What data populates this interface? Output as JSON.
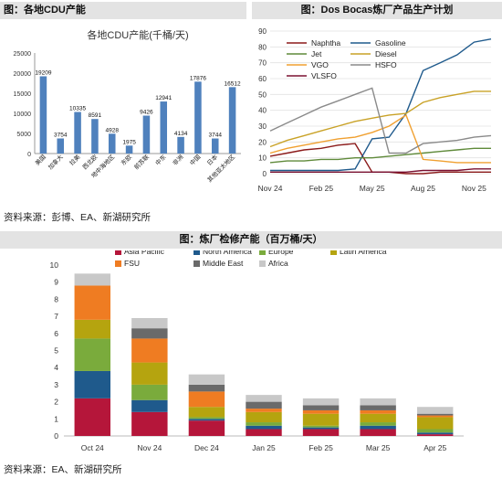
{
  "titles": {
    "cdu": "图：各地CDU产能",
    "dos_bocas": "图：Dos Bocas炼厂产品生产计划",
    "maintenance": "图：炼厂检修产能（百万桶/天）"
  },
  "sources": {
    "top": "资料来源：彭博、EA、新湖研究所",
    "bottom": "资料来源：EA、新湖研究所"
  },
  "chart_data": [
    {
      "id": "cdu",
      "type": "bar",
      "title": "各地CDU产能(千桶/天)",
      "categories": [
        "美国",
        "加拿大",
        "拉美",
        "西北欧",
        "地中海地区",
        "东欧",
        "前苏联",
        "中东",
        "非洲",
        "中国",
        "日本",
        "其他亚太地区"
      ],
      "values": [
        19209,
        3754,
        10335,
        8591,
        4928,
        1975,
        9426,
        12941,
        4134,
        17876,
        3744,
        16512
      ],
      "ylim": [
        0,
        25000
      ],
      "yticks": [
        0,
        5000,
        10000,
        15000,
        20000,
        25000
      ],
      "color": "#4f81bd"
    },
    {
      "id": "dos_bocas",
      "type": "line",
      "xticks": [
        "Nov 24",
        "Feb 25",
        "May 25",
        "Aug 25",
        "Nov 25"
      ],
      "ylim": [
        0,
        90
      ],
      "yticks": [
        0,
        10,
        20,
        30,
        40,
        50,
        60,
        70,
        80,
        90
      ],
      "x_months": [
        "2024-11",
        "2024-12",
        "2025-01",
        "2025-02",
        "2025-03",
        "2025-04",
        "2025-05",
        "2025-06",
        "2025-07",
        "2025-08",
        "2025-09",
        "2025-10",
        "2025-11",
        "2025-12"
      ],
      "series": [
        {
          "name": "Naphtha",
          "color": "#8b1a1a",
          "values": [
            11,
            13,
            15,
            16,
            18,
            19,
            1,
            1,
            0,
            0,
            1,
            1,
            1,
            1
          ]
        },
        {
          "name": "Gasoline",
          "color": "#1f5a8c",
          "values": [
            2,
            2,
            2,
            2,
            2,
            3,
            22,
            23,
            38,
            65,
            70,
            75,
            83,
            85
          ]
        },
        {
          "name": "Jet",
          "color": "#5f8a3a",
          "values": [
            7,
            8,
            8,
            9,
            9,
            10,
            10,
            11,
            12,
            13,
            14,
            15,
            16,
            16
          ]
        },
        {
          "name": "Diesel",
          "color": "#c9a227",
          "values": [
            17,
            21,
            24,
            27,
            30,
            33,
            35,
            37,
            38,
            45,
            48,
            50,
            52,
            52
          ]
        },
        {
          "name": "VGO",
          "color": "#f0a030",
          "values": [
            13,
            16,
            18,
            20,
            22,
            23,
            26,
            30,
            37,
            9,
            8,
            7,
            7,
            7
          ]
        },
        {
          "name": "HSFO",
          "color": "#8a8a8a",
          "values": [
            27,
            32,
            37,
            42,
            46,
            50,
            54,
            13,
            13,
            19,
            20,
            21,
            23,
            24
          ]
        },
        {
          "name": "VLSFO",
          "color": "#7a1030",
          "values": [
            1,
            1,
            1,
            1,
            1,
            1,
            1,
            1,
            1,
            2,
            2,
            2,
            3,
            3
          ]
        }
      ]
    },
    {
      "id": "maintenance",
      "type": "bar",
      "stacked": true,
      "categories": [
        "Oct 24",
        "Nov 24",
        "Dec 24",
        "Jan 25",
        "Feb 25",
        "Mar 25",
        "Apr 25"
      ],
      "ylim": [
        0,
        10
      ],
      "yticks": [
        0,
        1,
        2,
        3,
        4,
        5,
        6,
        7,
        8,
        9,
        10
      ],
      "series": [
        {
          "name": "Asia Pacific",
          "color": "#b5163a",
          "values": [
            2.2,
            1.4,
            0.9,
            0.4,
            0.4,
            0.4,
            0.1
          ]
        },
        {
          "name": "North America",
          "color": "#1f5a8c",
          "values": [
            1.6,
            0.7,
            0.1,
            0.2,
            0.1,
            0.2,
            0.1
          ]
        },
        {
          "name": "Europe",
          "color": "#7aab3c",
          "values": [
            1.9,
            0.9,
            0.1,
            0.2,
            0.1,
            0.2,
            0.2
          ]
        },
        {
          "name": "Latin America",
          "color": "#b5a40f",
          "values": [
            1.1,
            1.3,
            0.6,
            0.6,
            0.7,
            0.5,
            0.7
          ]
        },
        {
          "name": "FSU",
          "color": "#ef7c22",
          "values": [
            2.0,
            1.4,
            0.9,
            0.2,
            0.2,
            0.2,
            0.1
          ]
        },
        {
          "name": "Middle East",
          "color": "#6a6a6a",
          "values": [
            0,
            0.6,
            0.4,
            0.4,
            0.3,
            0.3,
            0.1
          ]
        },
        {
          "name": "Africa",
          "color": "#c8c8c8",
          "values": [
            0.7,
            0.6,
            0.6,
            0.4,
            0.4,
            0.4,
            0.4
          ]
        }
      ]
    }
  ]
}
